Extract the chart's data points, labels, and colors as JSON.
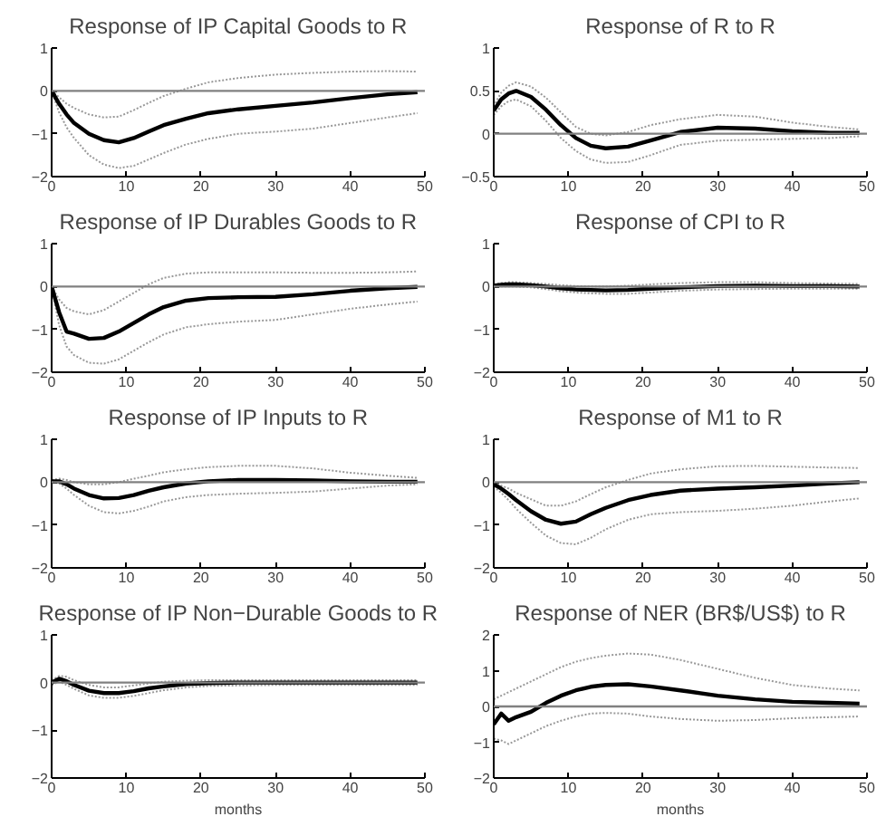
{
  "chart_data": [
    {
      "type": "line",
      "title": "Response of IP Capital Goods to R",
      "x": [
        0,
        1,
        2,
        3,
        5,
        7,
        9,
        11,
        13,
        15,
        18,
        21,
        25,
        30,
        35,
        40,
        45,
        49
      ],
      "xlim": [
        0,
        50
      ],
      "xticks": [
        0,
        10,
        20,
        30,
        40,
        50
      ],
      "ylim": [
        -2,
        1
      ],
      "yticks": [
        -2,
        -1,
        0,
        1
      ],
      "grid": false,
      "ref_lines": [
        {
          "axis": "y",
          "value": 0,
          "color": "#808080"
        }
      ],
      "series": [
        {
          "color": "#999999",
          "line_style": "dotted",
          "values": [
            0,
            -0.15,
            -0.3,
            -0.4,
            -0.55,
            -0.62,
            -0.6,
            -0.45,
            -0.28,
            -0.12,
            0.05,
            0.2,
            0.3,
            0.38,
            0.42,
            0.45,
            0.46,
            0.45
          ]
        },
        {
          "color": "#999999",
          "line_style": "dotted",
          "values": [
            0,
            -0.5,
            -0.85,
            -1.1,
            -1.5,
            -1.72,
            -1.8,
            -1.75,
            -1.6,
            -1.45,
            -1.25,
            -1.12,
            -1.0,
            -0.95,
            -0.88,
            -0.75,
            -0.62,
            -0.52
          ]
        },
        {
          "color": "#000000",
          "line_style": "solid",
          "values": [
            0,
            -0.3,
            -0.55,
            -0.75,
            -1.0,
            -1.15,
            -1.2,
            -1.1,
            -0.95,
            -0.8,
            -0.65,
            -0.52,
            -0.43,
            -0.35,
            -0.27,
            -0.17,
            -0.08,
            -0.03
          ]
        }
      ]
    },
    {
      "type": "line",
      "title": "Response of R to R",
      "x": [
        0,
        1,
        2,
        3,
        5,
        7,
        9,
        11,
        13,
        15,
        18,
        21,
        25,
        30,
        35,
        40,
        45,
        49
      ],
      "xlim": [
        0,
        50
      ],
      "xticks": [
        0,
        10,
        20,
        30,
        40,
        50
      ],
      "ylim": [
        -0.5,
        1
      ],
      "yticks": [
        -0.5,
        0,
        0.5,
        1
      ],
      "grid": false,
      "ref_lines": [
        {
          "axis": "y",
          "value": 0,
          "color": "#808080"
        }
      ],
      "series": [
        {
          "color": "#999999",
          "line_style": "dotted",
          "values": [
            0.32,
            0.48,
            0.56,
            0.6,
            0.55,
            0.42,
            0.25,
            0.08,
            0.0,
            -0.02,
            0.02,
            0.1,
            0.17,
            0.22,
            0.2,
            0.13,
            0.08,
            0.05
          ]
        },
        {
          "color": "#999999",
          "line_style": "dotted",
          "values": [
            0.22,
            0.32,
            0.38,
            0.4,
            0.32,
            0.15,
            -0.05,
            -0.2,
            -0.3,
            -0.34,
            -0.33,
            -0.25,
            -0.13,
            -0.08,
            -0.07,
            -0.06,
            -0.05,
            -0.03
          ]
        },
        {
          "color": "#000000",
          "line_style": "solid",
          "values": [
            0.27,
            0.4,
            0.47,
            0.5,
            0.43,
            0.28,
            0.1,
            -0.05,
            -0.14,
            -0.17,
            -0.15,
            -0.08,
            0.02,
            0.07,
            0.06,
            0.03,
            0.01,
            0.01
          ]
        }
      ]
    },
    {
      "type": "line",
      "title": "Response of IP Durables Goods to R",
      "x": [
        0,
        1,
        2,
        3,
        5,
        7,
        9,
        11,
        13,
        15,
        18,
        21,
        25,
        30,
        35,
        40,
        45,
        49
      ],
      "xlim": [
        0,
        50
      ],
      "xticks": [
        0,
        10,
        20,
        30,
        40,
        50
      ],
      "ylim": [
        -2,
        1
      ],
      "yticks": [
        -2,
        -1,
        0,
        1
      ],
      "grid": false,
      "ref_lines": [
        {
          "axis": "y",
          "value": 0,
          "color": "#808080"
        }
      ],
      "series": [
        {
          "color": "#999999",
          "line_style": "dotted",
          "values": [
            0,
            -0.3,
            -0.5,
            -0.58,
            -0.65,
            -0.55,
            -0.35,
            -0.15,
            0.05,
            0.2,
            0.3,
            0.33,
            0.33,
            0.33,
            0.32,
            0.32,
            0.33,
            0.35
          ]
        },
        {
          "color": "#999999",
          "line_style": "dotted",
          "values": [
            0,
            -0.9,
            -1.4,
            -1.6,
            -1.78,
            -1.8,
            -1.7,
            -1.5,
            -1.3,
            -1.12,
            -0.95,
            -0.88,
            -0.82,
            -0.78,
            -0.65,
            -0.52,
            -0.42,
            -0.35
          ]
        },
        {
          "color": "#000000",
          "line_style": "solid",
          "values": [
            0,
            -0.6,
            -1.05,
            -1.1,
            -1.22,
            -1.2,
            -1.05,
            -0.85,
            -0.65,
            -0.48,
            -0.33,
            -0.27,
            -0.25,
            -0.24,
            -0.18,
            -0.1,
            -0.04,
            -0.01
          ]
        }
      ]
    },
    {
      "type": "line",
      "title": "Response of CPI to R",
      "x": [
        0,
        1,
        2,
        3,
        5,
        7,
        9,
        11,
        13,
        15,
        18,
        21,
        25,
        30,
        35,
        40,
        45,
        49
      ],
      "xlim": [
        0,
        50
      ],
      "xticks": [
        0,
        10,
        20,
        30,
        40,
        50
      ],
      "ylim": [
        -2,
        1
      ],
      "yticks": [
        -2,
        -1,
        0,
        1
      ],
      "grid": false,
      "ref_lines": [
        {
          "axis": "y",
          "value": 0,
          "color": "#808080"
        }
      ],
      "series": [
        {
          "color": "#999999",
          "line_style": "dotted",
          "values": [
            0.05,
            0.08,
            0.1,
            0.1,
            0.08,
            0.06,
            0.03,
            0.01,
            0,
            0,
            0.02,
            0.05,
            0.08,
            0.1,
            0.1,
            0.08,
            0.07,
            0.06
          ]
        },
        {
          "color": "#999999",
          "line_style": "dotted",
          "values": [
            -0.01,
            0,
            0,
            0,
            -0.02,
            -0.06,
            -0.11,
            -0.14,
            -0.16,
            -0.17,
            -0.17,
            -0.14,
            -0.1,
            -0.07,
            -0.06,
            -0.05,
            -0.05,
            -0.05
          ]
        },
        {
          "color": "#000000",
          "line_style": "solid",
          "values": [
            0.02,
            0.04,
            0.05,
            0.05,
            0.03,
            0,
            -0.04,
            -0.07,
            -0.08,
            -0.09,
            -0.08,
            -0.05,
            -0.02,
            0.01,
            0.02,
            0.01,
            0.01,
            0
          ]
        }
      ]
    },
    {
      "type": "line",
      "title": "Response of IP Inputs to R",
      "x": [
        0,
        1,
        2,
        3,
        5,
        7,
        9,
        11,
        13,
        15,
        18,
        21,
        25,
        30,
        35,
        40,
        45,
        49
      ],
      "xlim": [
        0,
        50
      ],
      "xticks": [
        0,
        10,
        20,
        30,
        40,
        50
      ],
      "ylim": [
        -2,
        1
      ],
      "yticks": [
        -2,
        -1,
        0,
        1
      ],
      "grid": false,
      "ref_lines": [
        {
          "axis": "y",
          "value": 0,
          "color": "#808080"
        }
      ],
      "series": [
        {
          "color": "#999999",
          "line_style": "dotted",
          "values": [
            0.05,
            0.08,
            0.05,
            0,
            -0.05,
            -0.05,
            0,
            0.08,
            0.15,
            0.23,
            0.3,
            0.35,
            0.38,
            0.38,
            0.32,
            0.22,
            0.15,
            0.1
          ]
        },
        {
          "color": "#999999",
          "line_style": "dotted",
          "values": [
            0,
            -0.03,
            -0.15,
            -0.3,
            -0.55,
            -0.7,
            -0.73,
            -0.67,
            -0.57,
            -0.45,
            -0.35,
            -0.3,
            -0.27,
            -0.25,
            -0.22,
            -0.15,
            -0.08,
            -0.05
          ]
        },
        {
          "color": "#000000",
          "line_style": "solid",
          "values": [
            0.02,
            0.02,
            -0.05,
            -0.15,
            -0.3,
            -0.38,
            -0.37,
            -0.3,
            -0.2,
            -0.12,
            -0.03,
            0.02,
            0.05,
            0.05,
            0.04,
            0.02,
            0.01,
            0.01
          ]
        }
      ]
    },
    {
      "type": "line",
      "title": "Response of M1 to R",
      "x": [
        0,
        1,
        2,
        3,
        5,
        7,
        9,
        11,
        13,
        15,
        18,
        21,
        25,
        30,
        35,
        40,
        45,
        49
      ],
      "xlim": [
        0,
        50
      ],
      "xticks": [
        0,
        10,
        20,
        30,
        40,
        50
      ],
      "ylim": [
        -2,
        1
      ],
      "yticks": [
        -2,
        -1,
        0,
        1
      ],
      "grid": false,
      "ref_lines": [
        {
          "axis": "y",
          "value": 0,
          "color": "#808080"
        }
      ],
      "series": [
        {
          "color": "#999999",
          "line_style": "dotted",
          "values": [
            -0.02,
            -0.08,
            -0.15,
            -0.25,
            -0.4,
            -0.55,
            -0.55,
            -0.45,
            -0.28,
            -0.12,
            0.05,
            0.2,
            0.3,
            0.37,
            0.38,
            0.36,
            0.34,
            0.33
          ]
        },
        {
          "color": "#999999",
          "line_style": "dotted",
          "values": [
            -0.1,
            -0.25,
            -0.42,
            -0.62,
            -0.95,
            -1.25,
            -1.42,
            -1.45,
            -1.3,
            -1.1,
            -0.88,
            -0.75,
            -0.7,
            -0.67,
            -0.62,
            -0.55,
            -0.45,
            -0.38
          ]
        },
        {
          "color": "#000000",
          "line_style": "solid",
          "values": [
            -0.05,
            -0.15,
            -0.28,
            -0.42,
            -0.68,
            -0.88,
            -0.97,
            -0.92,
            -0.75,
            -0.6,
            -0.42,
            -0.3,
            -0.2,
            -0.15,
            -0.12,
            -0.08,
            -0.03,
            0
          ]
        }
      ]
    },
    {
      "type": "line",
      "title": "Response of IP Non−Durable Goods to R",
      "xlabel": "months",
      "x": [
        0,
        1,
        2,
        3,
        5,
        7,
        9,
        11,
        13,
        15,
        18,
        21,
        25,
        30,
        35,
        40,
        45,
        49
      ],
      "xlim": [
        0,
        50
      ],
      "xticks": [
        0,
        10,
        20,
        30,
        40,
        50
      ],
      "ylim": [
        -2,
        1
      ],
      "yticks": [
        -2,
        -1,
        0,
        1
      ],
      "grid": false,
      "ref_lines": [
        {
          "axis": "y",
          "value": 0,
          "color": "#808080"
        }
      ],
      "series": [
        {
          "color": "#999999",
          "line_style": "dotted",
          "values": [
            0.05,
            0.14,
            0.12,
            0.05,
            -0.05,
            -0.1,
            -0.1,
            -0.06,
            -0.02,
            0.02,
            0.04,
            0.05,
            0.05,
            0.05,
            0.05,
            0.05,
            0.05,
            0.05
          ]
        },
        {
          "color": "#999999",
          "line_style": "dotted",
          "values": [
            -0.05,
            0.02,
            -0.05,
            -0.13,
            -0.27,
            -0.32,
            -0.32,
            -0.28,
            -0.22,
            -0.16,
            -0.1,
            -0.07,
            -0.06,
            -0.05,
            -0.05,
            -0.05,
            -0.05,
            -0.05
          ]
        },
        {
          "color": "#000000",
          "line_style": "solid",
          "values": [
            0,
            0.08,
            0.03,
            -0.05,
            -0.17,
            -0.22,
            -0.22,
            -0.18,
            -0.12,
            -0.08,
            -0.03,
            -0.01,
            0,
            0,
            0,
            0,
            0,
            0
          ]
        }
      ]
    },
    {
      "type": "line",
      "title": "Response of NER (BR$/US$) to R",
      "xlabel": "months",
      "x": [
        0,
        1,
        2,
        3,
        5,
        7,
        9,
        11,
        13,
        15,
        18,
        21,
        25,
        30,
        35,
        40,
        45,
        49
      ],
      "xlim": [
        0,
        50
      ],
      "xticks": [
        0,
        10,
        20,
        30,
        40,
        50
      ],
      "ylim": [
        -2,
        2
      ],
      "yticks": [
        -2,
        -1,
        0,
        1,
        2
      ],
      "grid": false,
      "ref_lines": [
        {
          "axis": "y",
          "value": 0,
          "color": "#808080"
        }
      ],
      "series": [
        {
          "color": "#999999",
          "line_style": "dotted",
          "values": [
            0.2,
            0.3,
            0.4,
            0.5,
            0.7,
            0.9,
            1.1,
            1.25,
            1.35,
            1.42,
            1.48,
            1.45,
            1.3,
            1.05,
            0.8,
            0.6,
            0.5,
            0.45
          ]
        },
        {
          "color": "#999999",
          "line_style": "dotted",
          "values": [
            -0.9,
            -0.95,
            -1.05,
            -0.95,
            -0.75,
            -0.55,
            -0.4,
            -0.28,
            -0.2,
            -0.18,
            -0.2,
            -0.28,
            -0.35,
            -0.4,
            -0.38,
            -0.33,
            -0.3,
            -0.28
          ]
        },
        {
          "color": "#000000",
          "line_style": "solid",
          "values": [
            -0.5,
            -0.2,
            -0.4,
            -0.3,
            -0.15,
            0.1,
            0.3,
            0.45,
            0.55,
            0.6,
            0.62,
            0.56,
            0.45,
            0.3,
            0.2,
            0.13,
            0.1,
            0.08
          ]
        }
      ]
    }
  ]
}
